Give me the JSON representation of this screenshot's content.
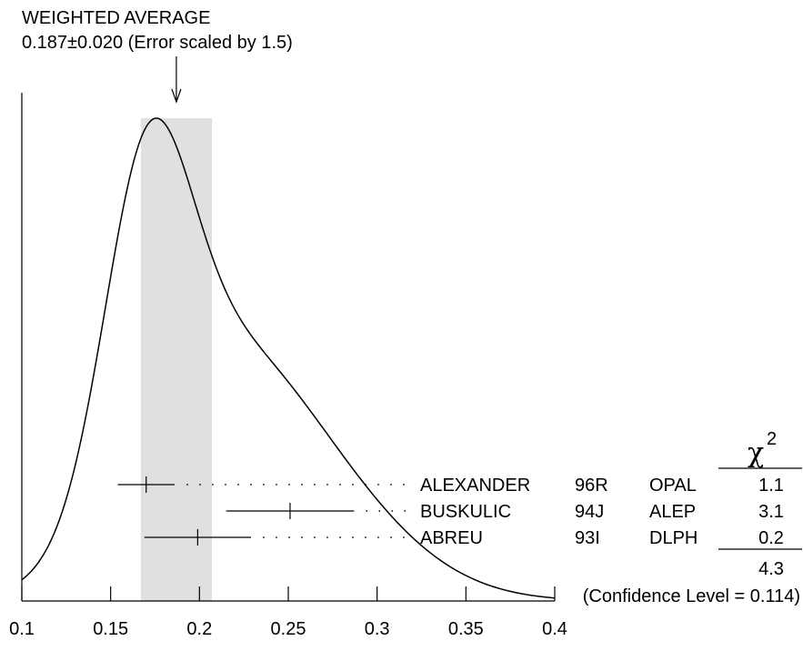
{
  "chart_data": {
    "type": "ideogram",
    "title": "WEIGHTED AVERAGE",
    "subtitle": "0.187±0.020 (Error scaled by 1.5)",
    "weighted_average": {
      "value": 0.187,
      "error": 0.02,
      "scale_factor": 1.5
    },
    "xlim": [
      0.1,
      0.4
    ],
    "x_ticks": [
      {
        "value": 0.1,
        "label": "0.1"
      },
      {
        "value": 0.15,
        "label": "0.15"
      },
      {
        "value": 0.2,
        "label": "0.2"
      },
      {
        "value": 0.25,
        "label": "0.25"
      },
      {
        "value": 0.3,
        "label": "0.3"
      },
      {
        "value": 0.35,
        "label": "0.35"
      },
      {
        "value": 0.4,
        "label": "0.4"
      }
    ],
    "measurements": [
      {
        "author": "ALEXANDER",
        "ref": "96R",
        "experiment": "OPAL",
        "value": 0.17,
        "error": 0.016,
        "chi2": "1.1"
      },
      {
        "author": "BUSKULIC",
        "ref": "94J",
        "experiment": "ALEP",
        "value": 0.251,
        "error": 0.036,
        "chi2": "3.1"
      },
      {
        "author": "ABREU",
        "ref": "93I",
        "experiment": "DLPH",
        "value": 0.199,
        "error": 0.03,
        "chi2": "0.2"
      }
    ],
    "chi2_header": "χ",
    "chi2_header_exp": "2",
    "chi2_total": "4.3",
    "confidence_text": "(Confidence Level = 0.114)",
    "grid": false
  }
}
